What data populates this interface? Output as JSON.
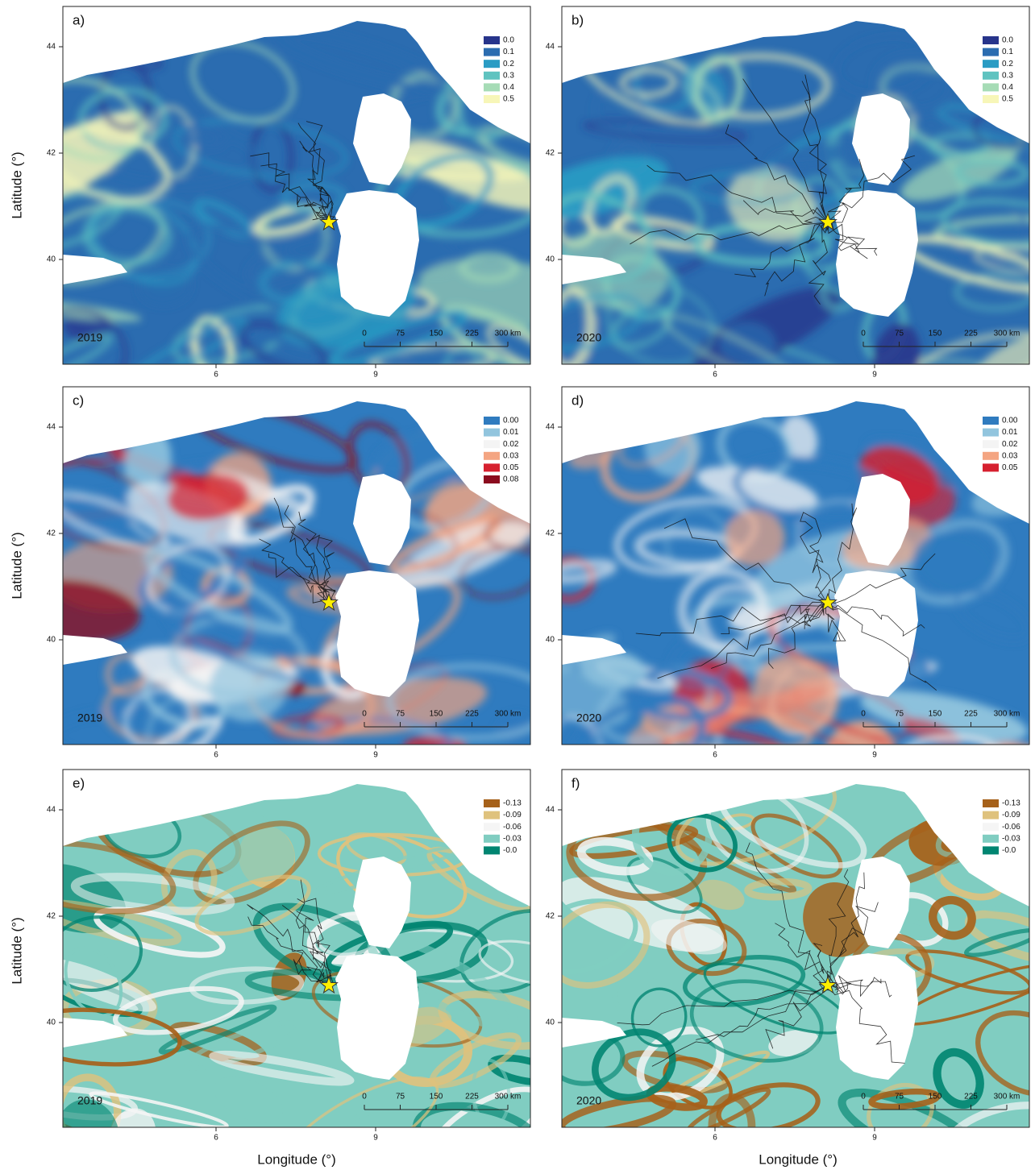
{
  "axis_titles": {
    "y": [
      "Latitude (°)",
      "Latitude (°)",
      "Latitude (°)"
    ],
    "x": [
      "Longitude (°)",
      "Longitude (°)"
    ]
  },
  "panels": [
    {
      "label": "a)",
      "year": "2019",
      "lat_ticks": [
        44,
        42,
        40
      ],
      "lon_ticks": [
        6,
        9
      ],
      "legend": [
        {
          "label": "0.0",
          "color": "#27348b"
        },
        {
          "label": "0.1",
          "color": "#2b6cb0"
        },
        {
          "label": "0.2",
          "color": "#2a9cc4"
        },
        {
          "label": "0.3",
          "color": "#5fc3c0"
        },
        {
          "label": "0.4",
          "color": "#a6dcb6"
        },
        {
          "label": "0.5",
          "color": "#f7f6b8"
        }
      ],
      "scale": [
        "0",
        "75",
        "150",
        "225",
        "300 km"
      ]
    },
    {
      "label": "b)",
      "year": "2020",
      "lat_ticks": [
        44,
        42,
        40
      ],
      "lon_ticks": [
        6,
        9
      ],
      "legend": [
        {
          "label": "0.0",
          "color": "#27348b"
        },
        {
          "label": "0.1",
          "color": "#2b6cb0"
        },
        {
          "label": "0.2",
          "color": "#2a9cc4"
        },
        {
          "label": "0.3",
          "color": "#5fc3c0"
        },
        {
          "label": "0.4",
          "color": "#a6dcb6"
        },
        {
          "label": "0.5",
          "color": "#f7f6b8"
        }
      ],
      "scale": [
        "0",
        "75",
        "150",
        "225",
        "300 km"
      ]
    },
    {
      "label": "c)",
      "year": "2019",
      "lat_ticks": [
        44,
        42,
        40
      ],
      "lon_ticks": [
        6,
        9
      ],
      "legend": [
        {
          "label": "0.00",
          "color": "#2f7bbf"
        },
        {
          "label": "0.01",
          "color": "#92c5de"
        },
        {
          "label": "0.02",
          "color": "#f4f4f4"
        },
        {
          "label": "0.03",
          "color": "#f4a582"
        },
        {
          "label": "0.05",
          "color": "#d6202f"
        },
        {
          "label": "0.08",
          "color": "#8b0b1e"
        }
      ],
      "scale": [
        "0",
        "75",
        "150",
        "225",
        "300 km"
      ]
    },
    {
      "label": "d)",
      "year": "2020",
      "lat_ticks": [
        44,
        42,
        40
      ],
      "lon_ticks": [
        6,
        9
      ],
      "legend": [
        {
          "label": "0.00",
          "color": "#2f7bbf"
        },
        {
          "label": "0.01",
          "color": "#92c5de"
        },
        {
          "label": "0.02",
          "color": "#f4f4f4"
        },
        {
          "label": "0.03",
          "color": "#f4a582"
        },
        {
          "label": "0.05",
          "color": "#d6202f"
        }
      ],
      "scale": [
        "0",
        "75",
        "150",
        "225",
        "300 km"
      ]
    },
    {
      "label": "e)",
      "year": "2019",
      "lat_ticks": [
        44,
        42,
        40
      ],
      "lon_ticks": [
        6,
        9
      ],
      "legend": [
        {
          "label": "-0.13",
          "color": "#a6611a"
        },
        {
          "label": "-0.09",
          "color": "#dfc27d"
        },
        {
          "label": "-0.06",
          "color": "#f5f5f5"
        },
        {
          "label": "-0.03",
          "color": "#80cdc1"
        },
        {
          "label": "-0.0",
          "color": "#018571"
        }
      ],
      "scale": [
        "0",
        "75",
        "150",
        "225",
        "300 km"
      ]
    },
    {
      "label": "f)",
      "year": "2020",
      "lat_ticks": [
        44,
        42,
        40
      ],
      "lon_ticks": [
        6,
        9
      ],
      "legend": [
        {
          "label": "-0.13",
          "color": "#a6611a"
        },
        {
          "label": "-0.09",
          "color": "#dfc27d"
        },
        {
          "label": "-0.06",
          "color": "#f5f5f5"
        },
        {
          "label": "-0.03",
          "color": "#80cdc1"
        },
        {
          "label": "-0.0",
          "color": "#018571"
        }
      ],
      "scale": [
        "0",
        "75",
        "150",
        "225",
        "300 km"
      ]
    }
  ]
}
